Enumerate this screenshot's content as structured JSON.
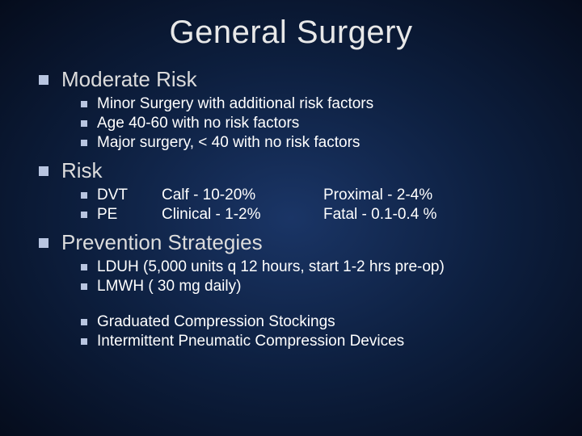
{
  "title": "General Surgery",
  "sections": [
    {
      "heading": "Moderate Risk",
      "items": [
        "Minor Surgery with additional risk factors",
        "Age 40-60 with no risk factors",
        "Major surgery, < 40 with no risk factors"
      ]
    },
    {
      "heading": "Risk",
      "riskRows": [
        {
          "label": "DVT",
          "col2": "Calf - 10-20%",
          "col3": "Proximal - 2-4%"
        },
        {
          "label": "PE",
          "col2": "Clinical - 1-2%",
          "col3": "Fatal - 0.1-0.4 %"
        }
      ]
    },
    {
      "heading": "Prevention Strategies",
      "groups": [
        [
          "LDUH (5,000 units q 12 hours, start 1-2 hrs pre-op)",
          "LMWH ( 30 mg daily)"
        ],
        [
          "Graduated Compression Stockings",
          "Intermittent Pneumatic Compression Devices"
        ]
      ]
    }
  ],
  "style": {
    "title_fontsize": 40,
    "l1_fontsize": 26,
    "l2_fontsize": 19,
    "title_color": "#e8e8e8",
    "l1_color": "#dcdcdc",
    "l2_color": "#ffffff",
    "bullet_color": "#b8c5e0",
    "bg_gradient": [
      "#1a3566",
      "#0d1f3f",
      "#050c1c"
    ]
  }
}
